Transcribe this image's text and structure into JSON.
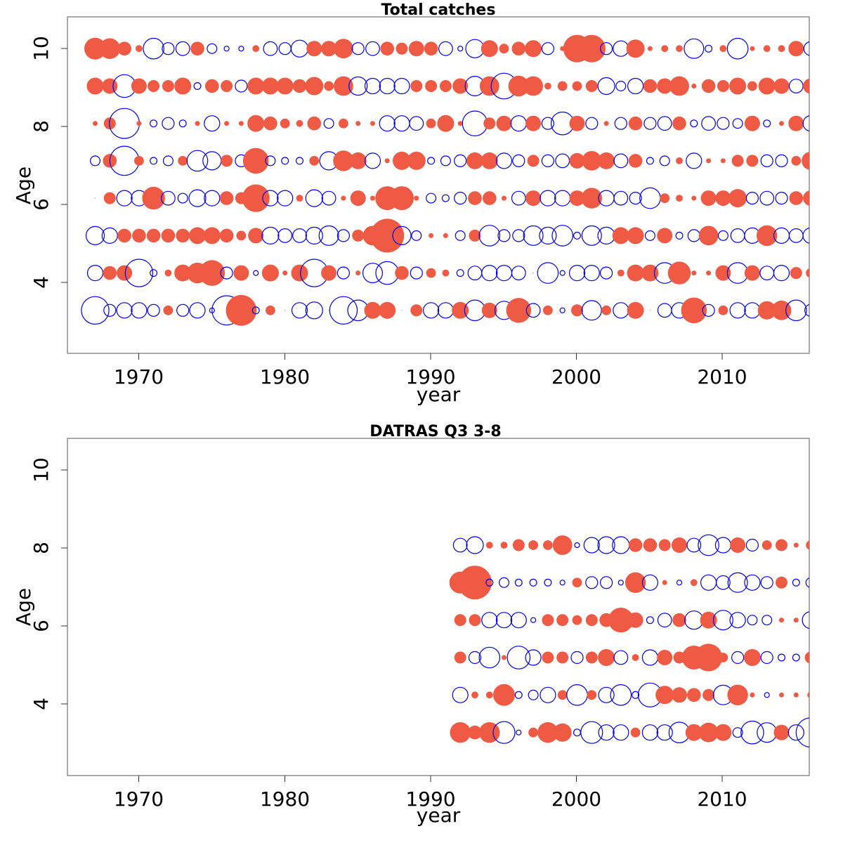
{
  "colors": {
    "positive": "#ee5a43",
    "negative": "#0000ee"
  },
  "chart_data": [
    {
      "type": "scatter",
      "subtype": "bubble-residuals",
      "title": "Total catches",
      "xlabel": "year",
      "ylabel": "Age",
      "xlim": [
        1965.1,
        2015.9
      ],
      "ylim": [
        1.85,
        10.85
      ],
      "xticks": [
        "1970",
        "1980",
        "1990",
        "2000",
        "2010"
      ],
      "yticks": [
        "4",
        "6",
        "8",
        "10"
      ],
      "grid": false,
      "encoding": "circle area proportional to |residual|; filled red = positive, open blue = negative",
      "ages": [
        3,
        4,
        5,
        6,
        7,
        8,
        9,
        10
      ],
      "years": [
        1967,
        1968,
        1969,
        1970,
        1971,
        1972,
        1973,
        1974,
        1975,
        1976,
        1977,
        1978,
        1979,
        1980,
        1981,
        1982,
        1983,
        1984,
        1985,
        1986,
        1987,
        1988,
        1989,
        1990,
        1991,
        1992,
        1993,
        1994,
        1995,
        1996,
        1997,
        1998,
        1999,
        2000,
        2001,
        2002,
        2003,
        2004,
        2005,
        2006,
        2007,
        2008,
        2009,
        2010,
        2011,
        2012,
        2013,
        2014,
        2015,
        2016
      ],
      "residuals": [
        [
          -1.6,
          -0.3,
          -0.5,
          -0.5,
          -0.3,
          0.2,
          -0.3,
          -0.5,
          -0.05,
          -1.8,
          2.0,
          -0.1,
          0.2,
          0.0,
          -0.5,
          -0.6,
          0.0,
          -1.6,
          -0.9,
          0.6,
          0.6,
          0.0,
          0.3,
          -0.5,
          -0.5,
          0.6,
          -0.9,
          0.5,
          -0.7,
          1.3,
          -0.4,
          0.2,
          -0.05,
          0.3,
          -0.8,
          0.2,
          -0.5,
          0.6,
          0.0,
          -0.4,
          -0.5,
          1.4,
          -0.3,
          0.2,
          -0.5,
          -0.5,
          0.7,
          0.8,
          -0.9,
          -0.3
        ],
        [
          -0.5,
          0.4,
          0.5,
          -1.6,
          -0.1,
          0.1,
          0.6,
          0.9,
          1.4,
          -0.3,
          0.5,
          -0.05,
          0.6,
          0.05,
          0.6,
          -1.6,
          0.5,
          -0.3,
          0.05,
          -0.8,
          -1.1,
          0.4,
          -0.3,
          0.2,
          0.1,
          -0.1,
          -0.4,
          -0.5,
          -0.5,
          -0.4,
          0.0,
          -0.9,
          -0.05,
          -0.5,
          -0.5,
          -0.3,
          0.1,
          0.6,
          0.6,
          -0.9,
          1.1,
          0.05,
          0.05,
          0.5,
          -0.9,
          0.5,
          -0.4,
          -0.5,
          0.3,
          0.2
        ],
        [
          -0.7,
          -0.5,
          0.4,
          0.4,
          0.4,
          0.4,
          0.4,
          0.6,
          0.6,
          0.4,
          0.2,
          0.5,
          -0.6,
          -0.4,
          -0.4,
          -0.6,
          -0.8,
          -0.3,
          0.3,
          0.8,
          2.4,
          -0.7,
          -0.2,
          0.05,
          0.05,
          -0.2,
          0.3,
          -0.9,
          -0.3,
          -0.3,
          -0.8,
          -0.6,
          -0.9,
          -0.1,
          -0.8,
          -0.6,
          0.6,
          0.6,
          -0.2,
          0.5,
          -0.1,
          -0.3,
          0.8,
          -0.2,
          -0.4,
          -0.5,
          0.9,
          -0.5,
          -0.4,
          -0.5
        ],
        [
          0.0,
          0.3,
          -0.5,
          -0.5,
          1.1,
          -0.4,
          -0.2,
          -0.6,
          -0.5,
          0.4,
          0.3,
          1.6,
          -0.5,
          -0.5,
          0.1,
          -0.6,
          -0.4,
          0.05,
          0.5,
          0.05,
          1.2,
          1.2,
          0.05,
          -0.2,
          -0.1,
          -0.3,
          0.4,
          0.4,
          0.05,
          -0.4,
          0.5,
          -0.5,
          -0.5,
          0.5,
          0.9,
          -0.5,
          -0.4,
          -0.3,
          -0.9,
          0.2,
          0.1,
          0.05,
          0.5,
          0.5,
          0.7,
          -0.3,
          -0.4,
          -0.3,
          0.4,
          0.5
        ],
        [
          -0.2,
          0.4,
          -1.8,
          0.2,
          -0.1,
          -0.2,
          0.2,
          -0.9,
          -0.7,
          0.3,
          -0.3,
          1.4,
          -0.2,
          -0.1,
          -0.1,
          0.2,
          -0.7,
          0.9,
          0.6,
          -0.5,
          0.05,
          0.7,
          0.7,
          -0.1,
          -0.2,
          -0.3,
          0.6,
          0.6,
          -0.5,
          -0.3,
          0.3,
          -0.3,
          -0.4,
          0.5,
          0.8,
          0.6,
          -0.4,
          0.4,
          -0.1,
          -0.2,
          0.1,
          -0.5,
          0.05,
          0.05,
          0.3,
          0.3,
          -0.3,
          -0.3,
          0.2,
          0.7
        ],
        [
          0.05,
          0.3,
          -1.9,
          0.05,
          -0.1,
          -0.3,
          -0.1,
          0.05,
          -0.5,
          0.05,
          0.05,
          0.6,
          0.4,
          0.2,
          0.1,
          0.4,
          -0.2,
          0.2,
          0.05,
          0.05,
          -0.5,
          -0.5,
          -0.4,
          0.2,
          0.6,
          0.05,
          -1.3,
          0.3,
          0.5,
          -0.5,
          0.5,
          -0.3,
          -1.1,
          0.5,
          -0.3,
          0.05,
          -0.3,
          0.4,
          -0.3,
          -0.4,
          0.4,
          -0.1,
          -0.4,
          -0.3,
          -0.2,
          0.5,
          -0.1,
          0.05,
          0.5,
          -0.5
        ],
        [
          0.6,
          0.5,
          -1.1,
          0.5,
          0.3,
          0.3,
          0.6,
          -0.1,
          0.4,
          0.3,
          -0.3,
          0.6,
          0.6,
          0.6,
          0.4,
          0.7,
          0.2,
          0.8,
          -0.7,
          -0.5,
          -0.5,
          -0.5,
          0.3,
          0.3,
          0.3,
          0.5,
          -0.8,
          0.8,
          -1.4,
          0.9,
          0.8,
          0.1,
          0.2,
          0.2,
          0.3,
          -0.6,
          -0.2,
          -0.5,
          0.4,
          0.5,
          0.8,
          0.05,
          0.4,
          0.3,
          0.6,
          0.2,
          0.6,
          0.5,
          -0.4,
          0.5
        ],
        [
          1.0,
          0.9,
          0.4,
          0.1,
          -0.9,
          -0.3,
          -0.4,
          0.4,
          -0.2,
          -0.05,
          -0.05,
          0.1,
          -0.4,
          -0.3,
          -0.6,
          0.5,
          0.5,
          0.8,
          -0.3,
          -0.4,
          0.4,
          0.3,
          0.5,
          0.4,
          -0.4,
          -0.05,
          -0.7,
          0.6,
          0.2,
          0.4,
          0.6,
          -0.3,
          0.05,
          1.6,
          1.6,
          -0.3,
          -0.5,
          0.7,
          0.05,
          0.1,
          0.1,
          -0.8,
          -0.1,
          0.1,
          -0.9,
          0.05,
          0.1,
          0.1,
          0.5,
          -0.4
        ]
      ]
    },
    {
      "type": "scatter",
      "subtype": "bubble-residuals",
      "title": "DATRAS Q3 3-8",
      "xlabel": "year",
      "ylabel": "Age",
      "xlim": [
        1965.1,
        2015.9
      ],
      "ylim": [
        1.85,
        10.85
      ],
      "xticks": [
        "1970",
        "1980",
        "1990",
        "2000",
        "2010"
      ],
      "yticks": [
        "4",
        "6",
        "8",
        "10"
      ],
      "grid": false,
      "encoding": "circle area proportional to |residual|; filled red = positive, open blue = negative",
      "ages": [
        3,
        4,
        5,
        6,
        7,
        8
      ],
      "years": [
        1992,
        1993,
        1994,
        1995,
        1996,
        1997,
        1998,
        1999,
        2000,
        2001,
        2002,
        2003,
        2004,
        2005,
        2006,
        2007,
        2008,
        2009,
        2010,
        2011,
        2012,
        2013,
        2014,
        2015,
        2016
      ],
      "residuals": [
        [
          0.9,
          0.4,
          0.9,
          -1.0,
          -0.05,
          0.2,
          0.9,
          0.7,
          -0.1,
          -1.0,
          -0.5,
          -0.5,
          0.2,
          -0.5,
          -0.5,
          -0.9,
          0.6,
          0.8,
          0.6,
          -0.2,
          -1.1,
          -0.8,
          0.5,
          -0.5,
          -1.8
        ],
        [
          -0.5,
          0.1,
          0.1,
          1.0,
          -0.1,
          -0.2,
          -0.5,
          0.2,
          -0.9,
          0.2,
          -0.5,
          -0.9,
          -0.1,
          -1.2,
          0.7,
          0.5,
          0.4,
          0.3,
          -0.8,
          0.9,
          0.05,
          -0.05,
          0.05,
          0.05,
          0.1
        ],
        [
          0.3,
          -0.3,
          -0.9,
          0.05,
          -1.1,
          -0.5,
          0.3,
          0.3,
          -0.3,
          0.3,
          0.6,
          -0.4,
          0.1,
          -0.5,
          0.5,
          0.3,
          1.2,
          1.6,
          0.2,
          -0.3,
          0.6,
          -0.3,
          -0.1,
          -0.1,
          0.3
        ],
        [
          0.3,
          0.3,
          -0.5,
          -0.5,
          -0.5,
          -0.05,
          0.3,
          0.3,
          0.2,
          0.3,
          0.4,
          1.3,
          0.5,
          -0.1,
          -0.4,
          0.4,
          -0.7,
          0.6,
          -0.8,
          -0.5,
          -0.2,
          -0.2,
          0.05,
          0.05,
          -0.6
        ],
        [
          1.0,
          2.4,
          -0.1,
          -0.2,
          -0.1,
          -0.1,
          -0.1,
          -0.05,
          0.2,
          -0.3,
          -0.3,
          -0.05,
          0.9,
          -0.5,
          0.05,
          -0.05,
          0.1,
          -0.5,
          -0.4,
          -0.8,
          -0.5,
          -0.3,
          0.3,
          -0.1,
          -0.2
        ],
        [
          -0.4,
          -0.6,
          0.1,
          0.1,
          0.3,
          0.2,
          0.2,
          0.8,
          -0.05,
          -0.5,
          -0.6,
          -0.6,
          0.4,
          0.4,
          0.3,
          0.5,
          -0.4,
          -0.9,
          -0.5,
          0.5,
          -0.3,
          0.2,
          0.3,
          0.05,
          0.2
        ]
      ]
    }
  ]
}
